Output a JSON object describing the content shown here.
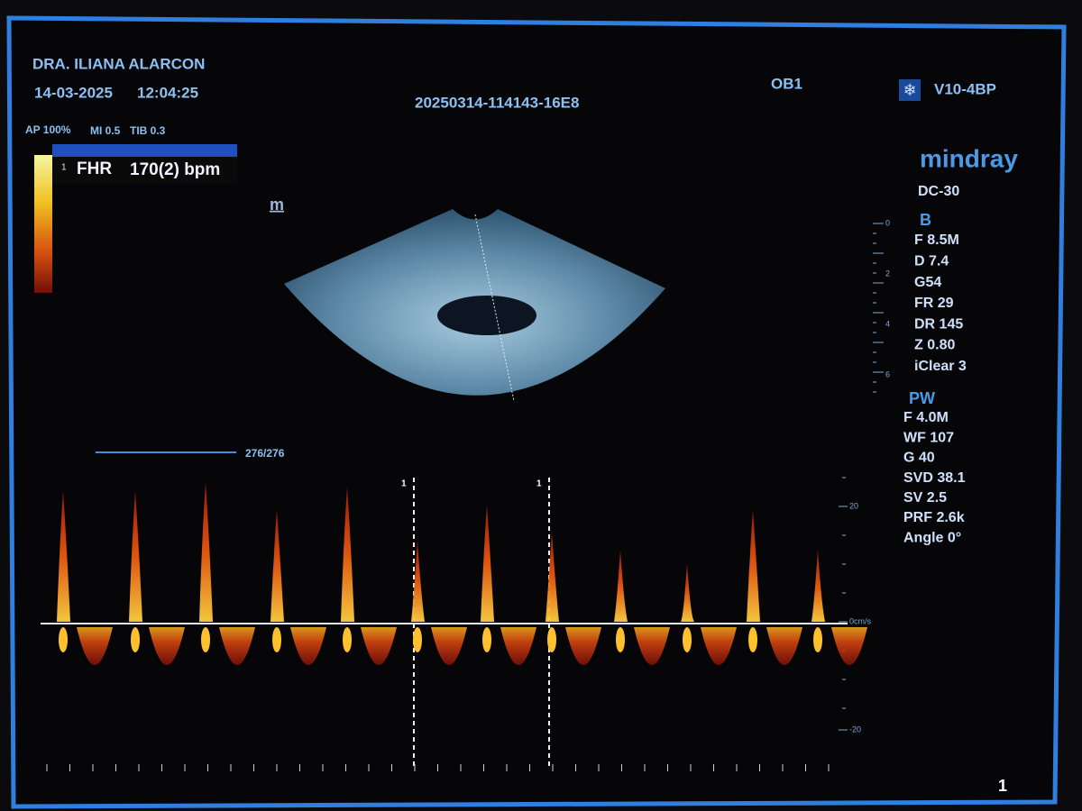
{
  "header": {
    "operator": "DRA. ILIANA ALARCON",
    "date": "14-03-2025",
    "time": "12:04:25",
    "exam_id": "20250314-114143-16E8",
    "preset": "OB1",
    "probe": "V10-4BP",
    "brand": "mindray",
    "model": "DC-30",
    "page": "1"
  },
  "acoustic": {
    "ap": "AP 100%",
    "mi": "MI 0.5",
    "tib": "TIB 0.3"
  },
  "measurement": {
    "index": "1",
    "label": "FHR",
    "value": "170(2) bpm"
  },
  "image_marker": "m",
  "b_mode": {
    "title": "B",
    "params": [
      "F 8.5M",
      "D 7.4",
      "G54",
      "FR 29",
      "DR 145",
      "Z 0.80",
      "iClear 3"
    ],
    "depth_scale": [
      "0",
      "2",
      "4",
      "6"
    ]
  },
  "pw": {
    "title": "PW",
    "params": [
      "F 4.0M",
      "WF 107",
      "G 40",
      "SVD 38.1",
      "SV 2.5",
      "PRF 2.6k",
      "Angle 0°"
    ],
    "velocity_scale": [
      "20",
      "0cm/s",
      "-20"
    ],
    "cursor_labels": [
      "1",
      "1"
    ]
  },
  "sweep": "276/276"
}
